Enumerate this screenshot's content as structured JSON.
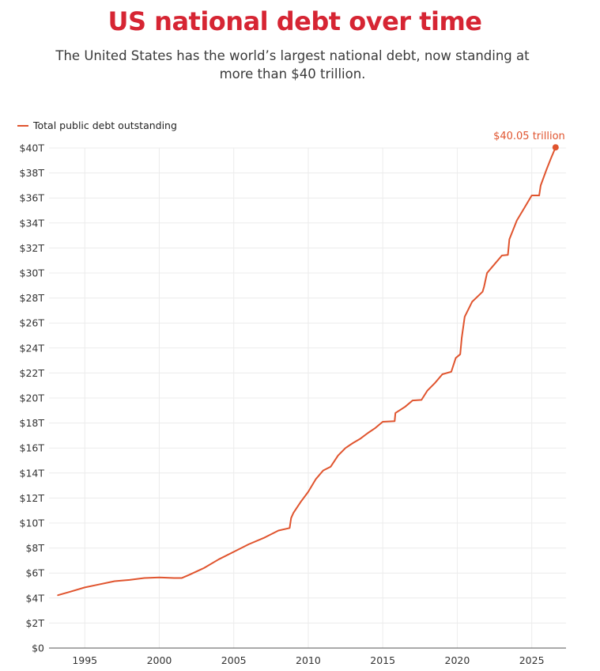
{
  "chart_data": {
    "type": "line",
    "title": "US national debt over time",
    "subtitle": "The United States has the world’s largest national debt, now standing at more than $40 trillion.",
    "xlabel": "",
    "ylabel": "",
    "legend": "top-left",
    "grid": true,
    "xlim": [
      1992.6,
      2027.3
    ],
    "ylim": [
      0,
      40
    ],
    "x_ticks": [
      1995,
      2000,
      2005,
      2010,
      2015,
      2020,
      2025
    ],
    "y_ticks": [
      0,
      2,
      4,
      6,
      8,
      10,
      12,
      14,
      16,
      18,
      20,
      22,
      24,
      26,
      28,
      30,
      32,
      34,
      36,
      38,
      40
    ],
    "y_tick_labels": [
      "$0",
      "$2T",
      "$4T",
      "$6T",
      "$8T",
      "$10T",
      "$12T",
      "$14T",
      "$16T",
      "$18T",
      "$20T",
      "$22T",
      "$24T",
      "$26T",
      "$28T",
      "$30T",
      "$32T",
      "$34T",
      "$36T",
      "$38T",
      "$40T"
    ],
    "end_label": "$40.05 trillion",
    "series": [
      {
        "name": "Total public debt outstanding",
        "color": "#e0542e",
        "x": [
          1993.2,
          1994.0,
          1995.0,
          1996.0,
          1997.0,
          1998.0,
          1999.0,
          2000.0,
          2001.0,
          2001.5,
          2002.0,
          2003.0,
          2004.0,
          2005.0,
          2006.0,
          2007.0,
          2008.0,
          2008.75,
          2008.85,
          2009.0,
          2009.5,
          2010.0,
          2010.5,
          2011.0,
          2011.5,
          2012.0,
          2012.5,
          2013.0,
          2013.5,
          2014.0,
          2014.5,
          2015.0,
          2015.8,
          2015.85,
          2016.5,
          2017.0,
          2017.6,
          2018.0,
          2018.5,
          2019.0,
          2019.6,
          2019.9,
          2020.2,
          2020.3,
          2020.5,
          2021.0,
          2021.7,
          2021.8,
          2022.0,
          2022.5,
          2023.0,
          2023.4,
          2023.5,
          2023.8,
          2024.0,
          2024.5,
          2025.0,
          2025.5,
          2025.6,
          2026.0,
          2026.3,
          2026.6
        ],
        "y": [
          4.23,
          4.5,
          4.85,
          5.1,
          5.35,
          5.45,
          5.6,
          5.65,
          5.6,
          5.6,
          5.85,
          6.4,
          7.1,
          7.7,
          8.3,
          8.8,
          9.4,
          9.6,
          10.4,
          10.8,
          11.7,
          12.5,
          13.5,
          14.2,
          14.5,
          15.4,
          16.0,
          16.4,
          16.75,
          17.2,
          17.6,
          18.1,
          18.15,
          18.8,
          19.3,
          19.8,
          19.85,
          20.6,
          21.2,
          21.9,
          22.1,
          23.2,
          23.5,
          24.8,
          26.5,
          27.7,
          28.5,
          28.9,
          30.0,
          30.7,
          31.4,
          31.45,
          32.7,
          33.6,
          34.2,
          35.2,
          36.2,
          36.2,
          37.0,
          38.3,
          39.2,
          40.05
        ]
      }
    ]
  }
}
